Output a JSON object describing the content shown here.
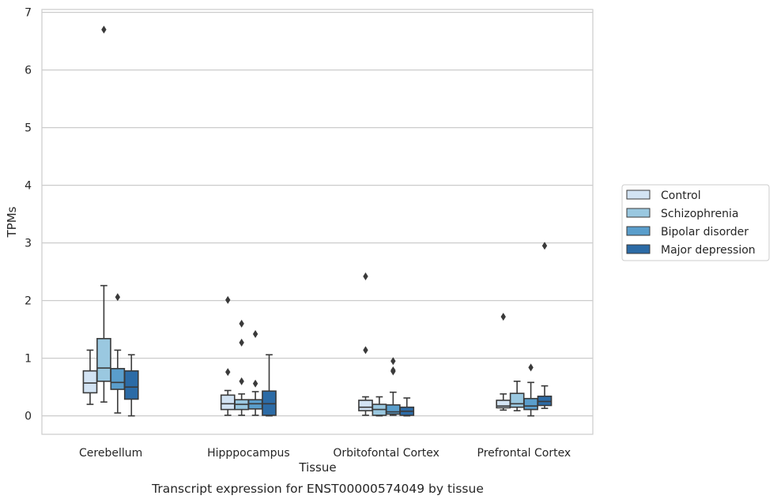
{
  "chart_data": {
    "type": "box",
    "xlabel": "Tissue",
    "ylabel": "TPMs",
    "caption": "Transcript expression for ENST00000574049 by tissue",
    "ylim": [
      -0.32,
      7.05
    ],
    "yticks": [
      0,
      1,
      2,
      3,
      4,
      5,
      6,
      7
    ],
    "grid": "horizontal",
    "legend_position": "right",
    "categories": [
      "Cerebellum",
      "Hipppocampus",
      "Orbitofontal Cortex",
      "Prefrontal Cortex"
    ],
    "series": [
      {
        "name": "Control",
        "color": "#d2e3f3",
        "boxes": [
          {
            "whislo": 0.2,
            "q1": 0.4,
            "med": 0.57,
            "q3": 0.78,
            "whishi": 1.14,
            "fliers": []
          },
          {
            "whislo": 0.01,
            "q1": 0.11,
            "med": 0.21,
            "q3": 0.36,
            "whishi": 0.44,
            "fliers": [
              0.76,
              2.01
            ]
          },
          {
            "whislo": 0.01,
            "q1": 0.09,
            "med": 0.15,
            "q3": 0.27,
            "whishi": 0.33,
            "fliers": [
              1.14,
              2.42
            ]
          },
          {
            "whislo": 0.1,
            "q1": 0.14,
            "med": 0.17,
            "q3": 0.27,
            "whishi": 0.38,
            "fliers": [
              1.72
            ]
          }
        ]
      },
      {
        "name": "Schizophrenia",
        "color": "#9ac8e0",
        "boxes": [
          {
            "whislo": 0.24,
            "q1": 0.6,
            "med": 0.83,
            "q3": 1.34,
            "whishi": 2.26,
            "fliers": [
              6.7
            ]
          },
          {
            "whislo": 0.01,
            "q1": 0.11,
            "med": 0.2,
            "q3": 0.28,
            "whishi": 0.38,
            "fliers": [
              0.6,
              1.27,
              1.6
            ]
          },
          {
            "whislo": 0.0,
            "q1": 0.01,
            "med": 0.11,
            "q3": 0.2,
            "whishi": 0.33,
            "fliers": []
          },
          {
            "whislo": 0.09,
            "q1": 0.15,
            "med": 0.21,
            "q3": 0.39,
            "whishi": 0.6,
            "fliers": []
          }
        ]
      },
      {
        "name": "Bipolar disorder",
        "color": "#5a9ecc",
        "boxes": [
          {
            "whislo": 0.05,
            "q1": 0.46,
            "med": 0.58,
            "q3": 0.82,
            "whishi": 1.14,
            "fliers": [
              2.06
            ]
          },
          {
            "whislo": 0.01,
            "q1": 0.12,
            "med": 0.21,
            "q3": 0.28,
            "whishi": 0.42,
            "fliers": [
              0.56,
              1.42
            ]
          },
          {
            "whislo": 0.01,
            "q1": 0.03,
            "med": 0.07,
            "q3": 0.19,
            "whishi": 0.41,
            "fliers": [
              0.77,
              0.79,
              0.95
            ]
          },
          {
            "whislo": 0.0,
            "q1": 0.11,
            "med": 0.17,
            "q3": 0.3,
            "whishi": 0.58,
            "fliers": [
              0.84
            ]
          }
        ]
      },
      {
        "name": "Major depression",
        "color": "#2c6ba6",
        "boxes": [
          {
            "whislo": 0.0,
            "q1": 0.29,
            "med": 0.5,
            "q3": 0.78,
            "whishi": 1.06,
            "fliers": []
          },
          {
            "whislo": 0.0,
            "q1": 0.01,
            "med": 0.21,
            "q3": 0.43,
            "whishi": 1.06,
            "fliers": []
          },
          {
            "whislo": 0.0,
            "q1": 0.01,
            "med": 0.08,
            "q3": 0.15,
            "whishi": 0.31,
            "fliers": []
          },
          {
            "whislo": 0.13,
            "q1": 0.18,
            "med": 0.25,
            "q3": 0.34,
            "whishi": 0.52,
            "fliers": [
              2.95
            ]
          }
        ]
      }
    ]
  }
}
